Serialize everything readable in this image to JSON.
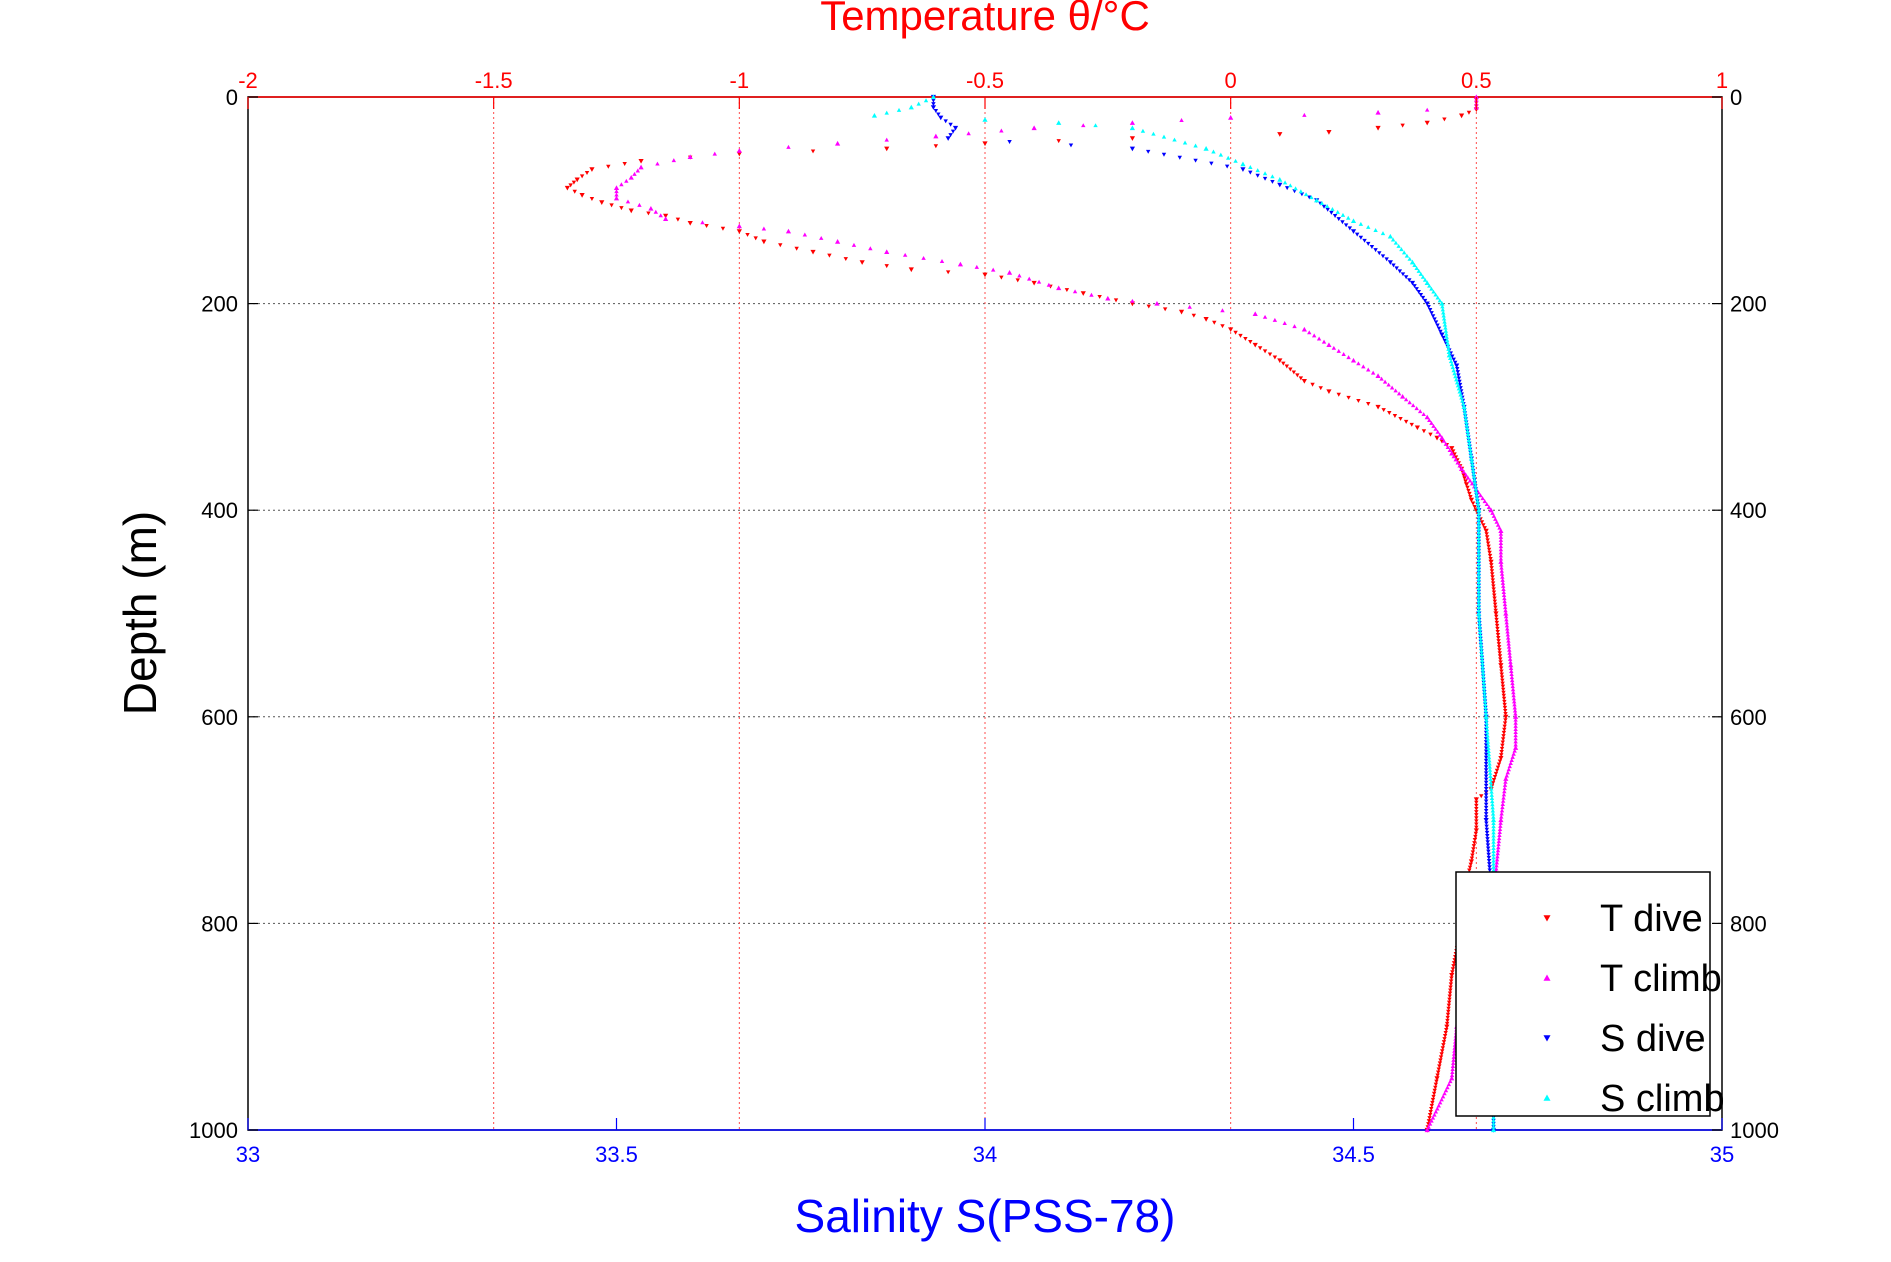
{
  "chart_data": {
    "type": "scatter",
    "title": "Temperature θ/°C",
    "xlabel": "Salinity S(PSS-78)",
    "ylabel": "Depth (m)",
    "ylim": [
      1000,
      0
    ],
    "yticks": [
      "0",
      "200",
      "400",
      "600",
      "800",
      "1000"
    ],
    "y_tick_values": [
      0,
      200,
      400,
      600,
      800,
      1000
    ],
    "x_bottom": {
      "lim": [
        33,
        35
      ],
      "ticks": [
        "33",
        "33.5",
        "34",
        "34.5",
        "35"
      ],
      "tick_values": [
        33,
        33.5,
        34,
        34.5,
        35
      ],
      "color": "#0000ff"
    },
    "x_top": {
      "lim": [
        -2,
        1
      ],
      "ticks": [
        "-2",
        "-1.5",
        "-1",
        "-0.5",
        "0",
        "0.5",
        "1"
      ],
      "tick_values": [
        -2,
        -1.5,
        -1,
        -0.5,
        0,
        0.5,
        1
      ],
      "color": "#ff0000"
    },
    "grid": true,
    "legend_position": "bottom-right",
    "series": [
      {
        "name": "T dive",
        "axis": "top",
        "color": "#ff0000",
        "marker": "triangle-down",
        "points": [
          [
            0.5,
            2
          ],
          [
            0.5,
            12
          ],
          [
            0.47,
            18
          ],
          [
            0.4,
            25
          ],
          [
            0.3,
            30
          ],
          [
            0.2,
            34
          ],
          [
            0.1,
            36
          ],
          [
            -0.2,
            40
          ],
          [
            -0.5,
            45
          ],
          [
            -0.7,
            50
          ],
          [
            -1.0,
            55
          ],
          [
            -1.2,
            62
          ],
          [
            -1.3,
            70
          ],
          [
            -1.33,
            80
          ],
          [
            -1.35,
            88
          ],
          [
            -1.32,
            95
          ],
          [
            -1.28,
            102
          ],
          [
            -1.22,
            110
          ],
          [
            -1.15,
            115
          ],
          [
            -1.1,
            122
          ],
          [
            -1.0,
            130
          ],
          [
            -0.95,
            140
          ],
          [
            -0.85,
            150
          ],
          [
            -0.75,
            160
          ],
          [
            -0.65,
            167
          ],
          [
            -0.5,
            172
          ],
          [
            -0.4,
            180
          ],
          [
            -0.3,
            190
          ],
          [
            -0.2,
            200
          ],
          [
            -0.1,
            208
          ],
          [
            -0.05,
            215
          ],
          [
            0.0,
            225
          ],
          [
            0.05,
            240
          ],
          [
            0.1,
            255
          ],
          [
            0.15,
            275
          ],
          [
            0.2,
            285
          ],
          [
            0.3,
            300
          ],
          [
            0.38,
            320
          ],
          [
            0.42,
            330
          ],
          [
            0.45,
            340
          ],
          [
            0.47,
            360
          ],
          [
            0.48,
            375
          ],
          [
            0.49,
            390
          ],
          [
            0.5,
            400
          ],
          [
            0.52,
            420
          ],
          [
            0.53,
            450
          ],
          [
            0.54,
            500
          ],
          [
            0.55,
            550
          ],
          [
            0.56,
            600
          ],
          [
            0.55,
            640
          ],
          [
            0.53,
            670
          ],
          [
            0.5,
            680
          ],
          [
            0.5,
            710
          ],
          [
            0.49,
            740
          ],
          [
            0.48,
            760
          ],
          [
            0.47,
            800
          ],
          [
            0.45,
            850
          ],
          [
            0.44,
            900
          ],
          [
            0.42,
            950
          ],
          [
            0.4,
            1000
          ]
        ]
      },
      {
        "name": "T climb",
        "axis": "top",
        "color": "#ff00ff",
        "marker": "triangle-up",
        "points": [
          [
            0.5,
            0
          ],
          [
            0.5,
            10
          ],
          [
            0.3,
            15
          ],
          [
            0.0,
            20
          ],
          [
            -0.2,
            25
          ],
          [
            -0.4,
            30
          ],
          [
            -0.6,
            38
          ],
          [
            -0.8,
            45
          ],
          [
            -1.0,
            52
          ],
          [
            -1.1,
            58
          ],
          [
            -1.2,
            68
          ],
          [
            -1.22,
            78
          ],
          [
            -1.25,
            88
          ],
          [
            -1.25,
            98
          ],
          [
            -1.18,
            108
          ],
          [
            -1.15,
            118
          ],
          [
            -1.0,
            125
          ],
          [
            -0.9,
            130
          ],
          [
            -0.8,
            140
          ],
          [
            -0.7,
            150
          ],
          [
            -0.55,
            162
          ],
          [
            -0.45,
            170
          ],
          [
            -0.35,
            185
          ],
          [
            -0.25,
            195
          ],
          [
            -0.15,
            200
          ],
          [
            0.05,
            210
          ],
          [
            0.15,
            225
          ],
          [
            0.2,
            240
          ],
          [
            0.25,
            255
          ],
          [
            0.3,
            270
          ],
          [
            0.35,
            290
          ],
          [
            0.4,
            310
          ],
          [
            0.43,
            330
          ],
          [
            0.45,
            345
          ],
          [
            0.47,
            360
          ],
          [
            0.5,
            380
          ],
          [
            0.53,
            400
          ],
          [
            0.55,
            420
          ],
          [
            0.55,
            450
          ],
          [
            0.56,
            500
          ],
          [
            0.57,
            550
          ],
          [
            0.58,
            600
          ],
          [
            0.58,
            630
          ],
          [
            0.56,
            660
          ],
          [
            0.55,
            700
          ],
          [
            0.54,
            750
          ],
          [
            0.5,
            800
          ],
          [
            0.48,
            850
          ],
          [
            0.46,
            900
          ],
          [
            0.45,
            950
          ],
          [
            0.4,
            1000
          ]
        ]
      },
      {
        "name": "S dive",
        "axis": "bottom",
        "color": "#0000ff",
        "marker": "triangle-down",
        "points": [
          [
            33.93,
            0
          ],
          [
            33.93,
            10
          ],
          [
            33.94,
            20
          ],
          [
            33.96,
            30
          ],
          [
            33.95,
            40
          ],
          [
            34.2,
            50
          ],
          [
            34.35,
            70
          ],
          [
            34.4,
            85
          ],
          [
            34.45,
            100
          ],
          [
            34.5,
            130
          ],
          [
            34.55,
            160
          ],
          [
            34.58,
            180
          ],
          [
            34.6,
            200
          ],
          [
            34.62,
            230
          ],
          [
            34.64,
            260
          ],
          [
            34.65,
            300
          ],
          [
            34.66,
            350
          ],
          [
            34.67,
            400
          ],
          [
            34.67,
            500
          ],
          [
            34.68,
            600
          ],
          [
            34.68,
            700
          ],
          [
            34.69,
            800
          ],
          [
            34.69,
            900
          ],
          [
            34.69,
            1000
          ]
        ]
      },
      {
        "name": "S climb",
        "axis": "bottom",
        "color": "#00ffff",
        "marker": "triangle-up",
        "points": [
          [
            33.93,
            0
          ],
          [
            33.9,
            10
          ],
          [
            33.85,
            18
          ],
          [
            34.0,
            22
          ],
          [
            34.1,
            25
          ],
          [
            34.2,
            30
          ],
          [
            34.3,
            50
          ],
          [
            34.35,
            65
          ],
          [
            34.4,
            80
          ],
          [
            34.45,
            100
          ],
          [
            34.5,
            120
          ],
          [
            34.55,
            135
          ],
          [
            34.58,
            160
          ],
          [
            34.6,
            180
          ],
          [
            34.62,
            200
          ],
          [
            34.63,
            250
          ],
          [
            34.65,
            300
          ],
          [
            34.66,
            350
          ],
          [
            34.67,
            400
          ],
          [
            34.67,
            500
          ],
          [
            34.68,
            600
          ],
          [
            34.69,
            700
          ],
          [
            34.69,
            800
          ],
          [
            34.69,
            900
          ],
          [
            34.69,
            1000
          ]
        ]
      }
    ]
  }
}
